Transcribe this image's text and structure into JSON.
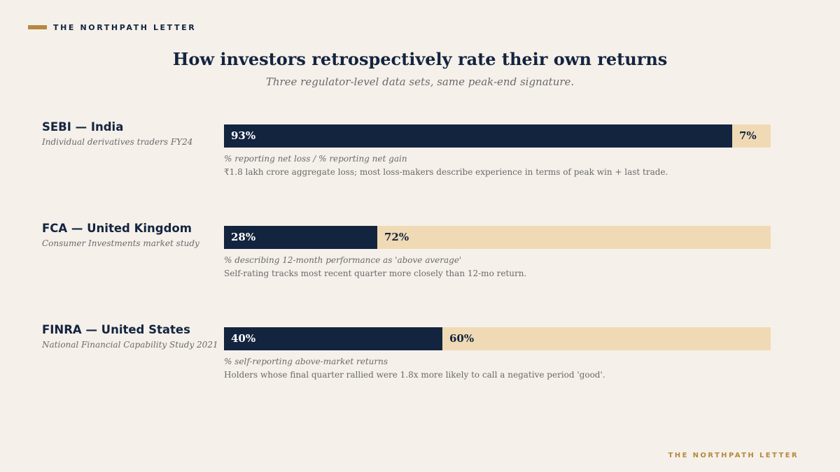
{
  "header": {
    "brand": "THE NORTHPATH LETTER"
  },
  "footer": {
    "brand": "THE NORTHPATH LETTER"
  },
  "colors": {
    "primary": "#13243f",
    "secondary": "#f0dab5",
    "accent": "#b5893e",
    "background": "#f5f0ea"
  },
  "chart_data": {
    "type": "bar",
    "orientation": "horizontal",
    "stacked": true,
    "title": "How investors retrospectively rate their own returns",
    "subtitle": "Three regulator-level data sets, same peak-end signature.",
    "xlim": [
      0,
      100
    ],
    "grid": false,
    "rows": [
      {
        "label": "SEBI — India",
        "source": "Individual derivatives traders FY24",
        "primary_value": 93,
        "secondary_value": 7,
        "primary_text": "93%",
        "secondary_text": "7%",
        "metric": "% reporting net loss / % reporting net gain",
        "note": "₹1.8 lakh crore aggregate loss; most loss-makers describe experience in terms of peak win + last trade."
      },
      {
        "label": "FCA — United Kingdom",
        "source": "Consumer Investments market study",
        "primary_value": 28,
        "secondary_value": 72,
        "primary_text": "28%",
        "secondary_text": "72%",
        "metric": "% describing 12-month performance as 'above average'",
        "note": "Self-rating tracks most recent quarter more closely than 12-mo return."
      },
      {
        "label": "FINRA — United States",
        "source": "National Financial Capability Study 2021",
        "primary_value": 40,
        "secondary_value": 60,
        "primary_text": "40%",
        "secondary_text": "60%",
        "metric": "% self-reporting above-market returns",
        "note": "Holders whose final quarter rallied were 1.8x more likely to call a negative period 'good'."
      }
    ]
  }
}
